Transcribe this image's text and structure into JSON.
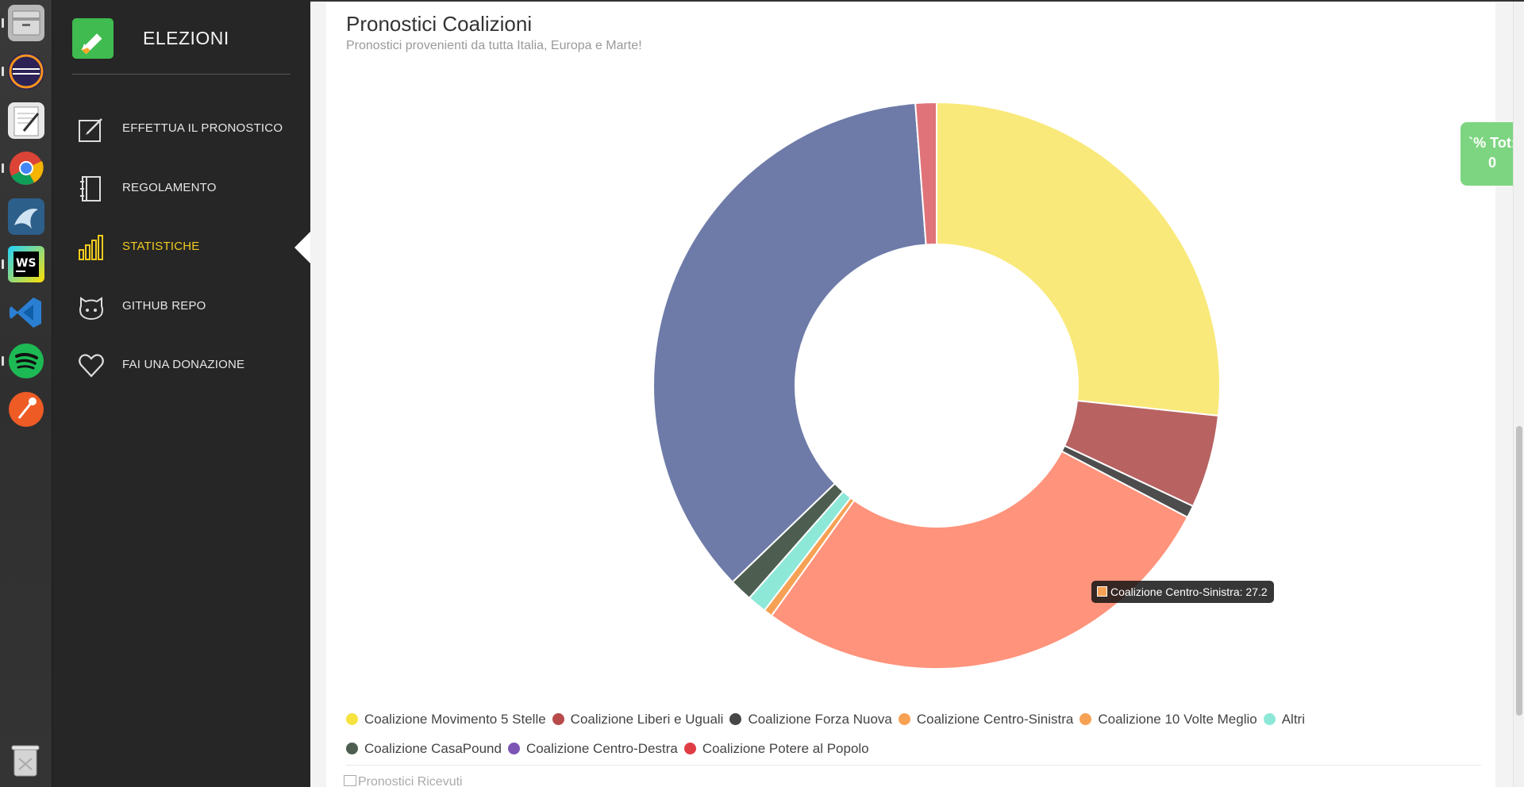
{
  "dock": {
    "items": [
      {
        "name": "files-icon",
        "color": "#c9c9c9"
      },
      {
        "name": "eclipse-icon",
        "color": "#2c2255"
      },
      {
        "name": "text-editor-icon",
        "color": "#e8e8e8"
      },
      {
        "name": "chrome-icon",
        "color": "#db4437"
      },
      {
        "name": "mysql-workbench-icon",
        "color": "#2d5f8b"
      },
      {
        "name": "webstorm-icon",
        "color": "#111111"
      },
      {
        "name": "vscode-icon",
        "color": "#2b7fd3"
      },
      {
        "name": "spotify-icon",
        "color": "#1db954"
      },
      {
        "name": "postman-icon",
        "color": "#ef5b25"
      }
    ]
  },
  "sidebar": {
    "brand": "ELEZIONI",
    "items": [
      {
        "label": "EFFETTUA IL PRONOSTICO",
        "icon": "edit-icon"
      },
      {
        "label": "REGOLAMENTO",
        "icon": "notebook-icon"
      },
      {
        "label": "STATISTICHE",
        "icon": "bar-chart-icon",
        "active": true
      },
      {
        "label": "GITHUB REPO",
        "icon": "github-icon"
      },
      {
        "label": "FAI UNA DONAZIONE",
        "icon": "heart-icon"
      }
    ]
  },
  "main": {
    "title": "Pronostici Coalizioni",
    "subtitle": "Pronostici provenienti da tutta Italia, Europa e Marte!",
    "next_section": "Pronostici Ricevuti",
    "tooltip": "Coalizione Centro-Sinistra: 27.2",
    "badge": {
      "line1": "`% Tot:",
      "line2": "0"
    }
  },
  "chart_data": {
    "type": "pie",
    "donut": true,
    "title": "",
    "legend_position": "bottom",
    "slices": [
      {
        "name": "Coalizione Movimento 5 Stelle",
        "value": 26.7,
        "color": "#f9e97a",
        "legend_color": "#f7e33f"
      },
      {
        "name": "Coalizione Liberi e Uguali",
        "value": 5.3,
        "color": "#b86262",
        "legend_color": "#b84a4a"
      },
      {
        "name": "Coalizione Forza Nuova",
        "value": 0.7,
        "color": "#4d4d4d",
        "legend_color": "#474747"
      },
      {
        "name": "Coalizione Centro-Sinistra",
        "value": 27.2,
        "color": "#ff937b",
        "legend_color": "#f7a154"
      },
      {
        "name": "Coalizione 10 Volte Meglio",
        "value": 0.5,
        "color": "#f7a154",
        "legend_color": "#f7a154"
      },
      {
        "name": "Altri",
        "value": 1.1,
        "color": "#8de8d8",
        "legend_color": "#8de8d8"
      },
      {
        "name": "Coalizione CasaPound",
        "value": 1.3,
        "color": "#4d5e50",
        "legend_color": "#4d5e50"
      },
      {
        "name": "Coalizione Centro-Destra",
        "value": 36.0,
        "color": "#6e7ba8",
        "legend_color": "#7c55b5"
      },
      {
        "name": "Coalizione Potere al Popolo",
        "value": 1.2,
        "color": "#e0737a",
        "legend_color": "#df3d45"
      }
    ]
  }
}
